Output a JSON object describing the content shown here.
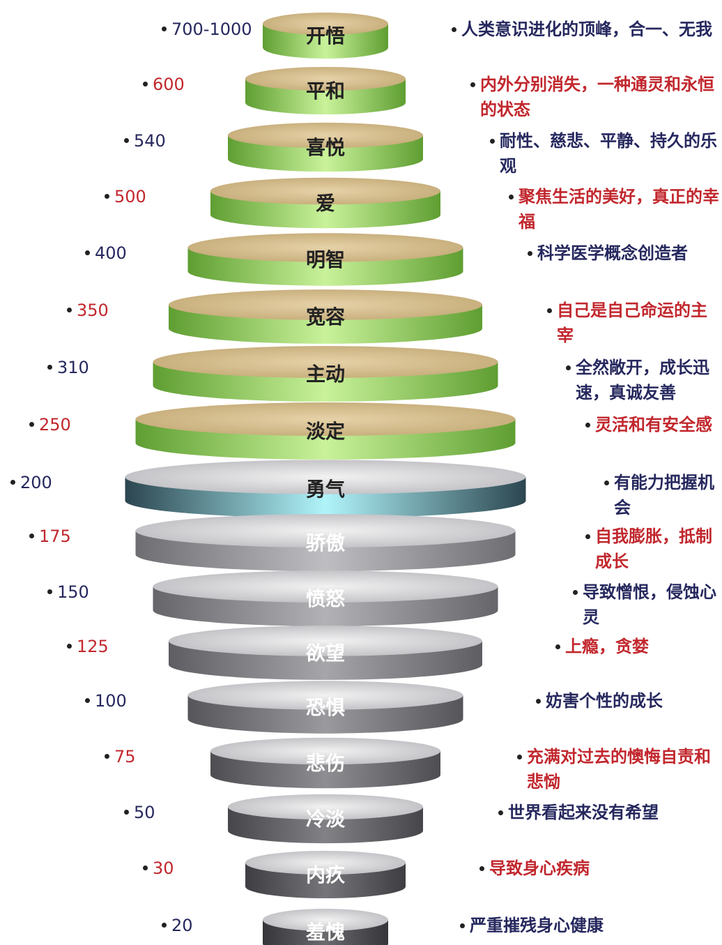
{
  "levels": [
    {
      "value": "700-1000",
      "name": "开悟",
      "description": "人类意识进化的顶峰，合一、无我"
    },
    {
      "value": "600",
      "name": "平和",
      "description": "内外分别消失，一种通灵和永恒的状态"
    },
    {
      "value": "540",
      "name": "喜悦",
      "description": "耐性、慈悲、平静、持久的乐观"
    },
    {
      "value": "500",
      "name": "爱",
      "description": "聚焦生活的美好，真正的幸福"
    },
    {
      "value": "400",
      "name": "明智",
      "description": "科学医学概念创造者"
    },
    {
      "value": "350",
      "name": "宽容",
      "description": "自己是自己命运的主宰"
    },
    {
      "value": "310",
      "name": "主动",
      "description": "全然敞开，成长迅速，真诚友善"
    },
    {
      "value": "250",
      "name": "淡定",
      "description": "灵活和有安全感"
    },
    {
      "value": "200",
      "name": "勇气",
      "description": "有能力把握机会"
    },
    {
      "value": "175",
      "name": "骄傲",
      "description": "自我膨胀，抵制成长"
    },
    {
      "value": "150",
      "name": "愤怒",
      "description": "导致憎恨，侵蚀心灵"
    },
    {
      "value": "125",
      "name": "欲望",
      "description": "上瘾，贪婪"
    },
    {
      "value": "100",
      "name": "恐惧",
      "description": "妨害个性的成长"
    },
    {
      "value": "75",
      "name": "悲伤",
      "description": "充满对过去的懊悔自责和悲恸"
    },
    {
      "value": "50",
      "name": "冷淡",
      "description": "世界看起来没有希望"
    },
    {
      "value": "30",
      "name": "内疚",
      "description": "导致身心疾病"
    },
    {
      "value": "20",
      "name": "羞愧",
      "description": "严重摧残身心健康"
    }
  ]
}
